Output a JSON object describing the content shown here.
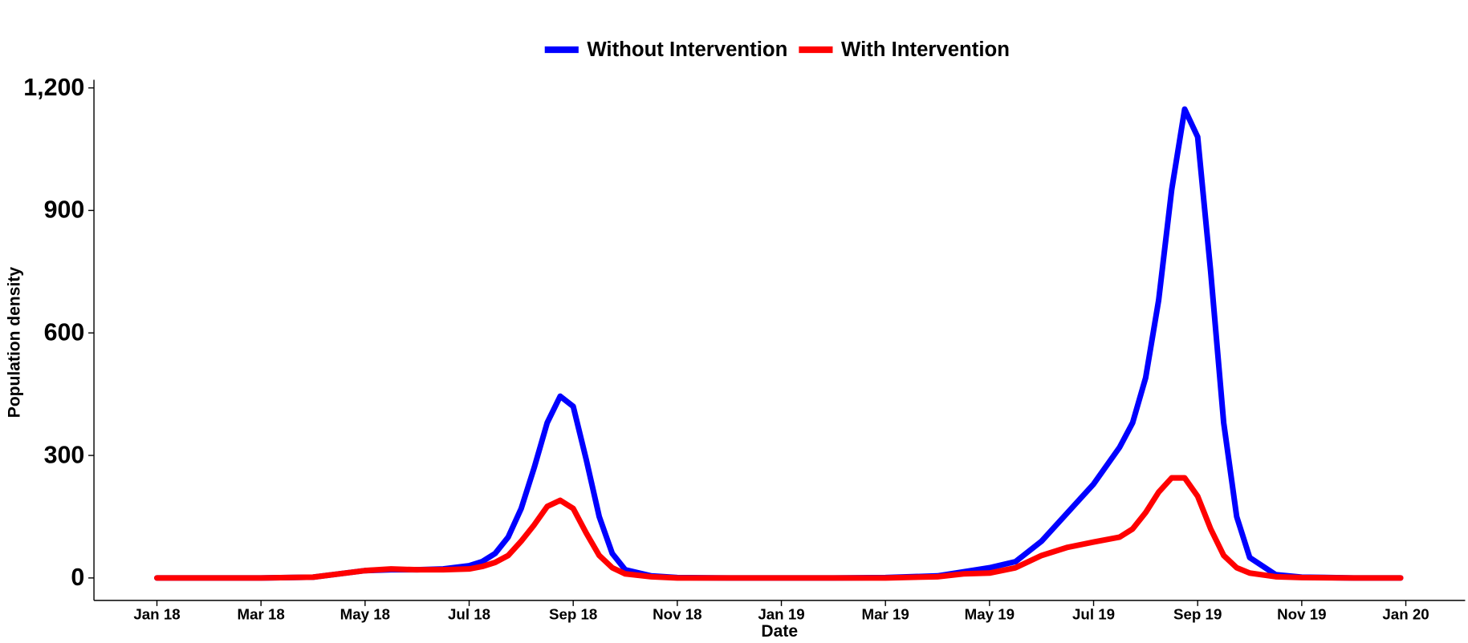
{
  "chart_data": {
    "type": "line",
    "xlabel": "Date",
    "ylabel": "Population density",
    "x": [
      0,
      1,
      2,
      3,
      4,
      4.5,
      5,
      5.5,
      6,
      6.25,
      6.5,
      6.75,
      7,
      7.25,
      7.5,
      7.75,
      8,
      8.25,
      8.5,
      8.75,
      9,
      9.5,
      10,
      11,
      12,
      13,
      14,
      15,
      15.5,
      16,
      16.5,
      17,
      17.5,
      18,
      18.5,
      18.75,
      19,
      19.25,
      19.5,
      19.75,
      20,
      20.25,
      20.5,
      20.75,
      21,
      21.5,
      22,
      23,
      23.9
    ],
    "series": [
      {
        "name": "Without Intervention",
        "color": "#0000ff",
        "values": [
          0,
          0,
          0,
          2,
          18,
          20,
          20,
          22,
          30,
          40,
          60,
          100,
          170,
          270,
          380,
          445,
          420,
          290,
          150,
          60,
          20,
          5,
          1,
          0,
          0,
          0,
          1,
          5,
          15,
          25,
          40,
          90,
          160,
          230,
          320,
          380,
          490,
          680,
          950,
          1148,
          1080,
          750,
          380,
          150,
          50,
          8,
          2,
          0,
          0
        ]
      },
      {
        "name": "With Intervention",
        "color": "#ff0000",
        "values": [
          0,
          0,
          0,
          2,
          18,
          22,
          20,
          20,
          22,
          28,
          38,
          55,
          90,
          130,
          175,
          190,
          170,
          110,
          55,
          25,
          10,
          3,
          0,
          0,
          0,
          0,
          0,
          3,
          10,
          12,
          25,
          55,
          75,
          88,
          100,
          120,
          160,
          210,
          245,
          245,
          200,
          120,
          55,
          25,
          12,
          3,
          1,
          0,
          0
        ]
      }
    ],
    "xlim": [
      -1.21,
      25.14
    ],
    "xticks": [
      {
        "value": 0,
        "label": "Jan 18"
      },
      {
        "value": 2,
        "label": "Mar 18"
      },
      {
        "value": 4,
        "label": "May 18"
      },
      {
        "value": 6,
        "label": "Jul 18"
      },
      {
        "value": 8,
        "label": "Sep 18"
      },
      {
        "value": 10,
        "label": "Nov 18"
      },
      {
        "value": 12,
        "label": "Jan 19"
      },
      {
        "value": 14,
        "label": "Mar 19"
      },
      {
        "value": 16,
        "label": "May 19"
      },
      {
        "value": 18,
        "label": "Jul 19"
      },
      {
        "value": 20,
        "label": "Sep 19"
      },
      {
        "value": 22,
        "label": "Nov 19"
      },
      {
        "value": 24,
        "label": "Jan 20"
      }
    ],
    "ylim": [
      -55,
      1220
    ],
    "yticks": [
      0,
      300,
      600,
      900,
      {
        "value": 1200,
        "label": "1,200"
      }
    ],
    "legend": "top",
    "grid": false
  }
}
